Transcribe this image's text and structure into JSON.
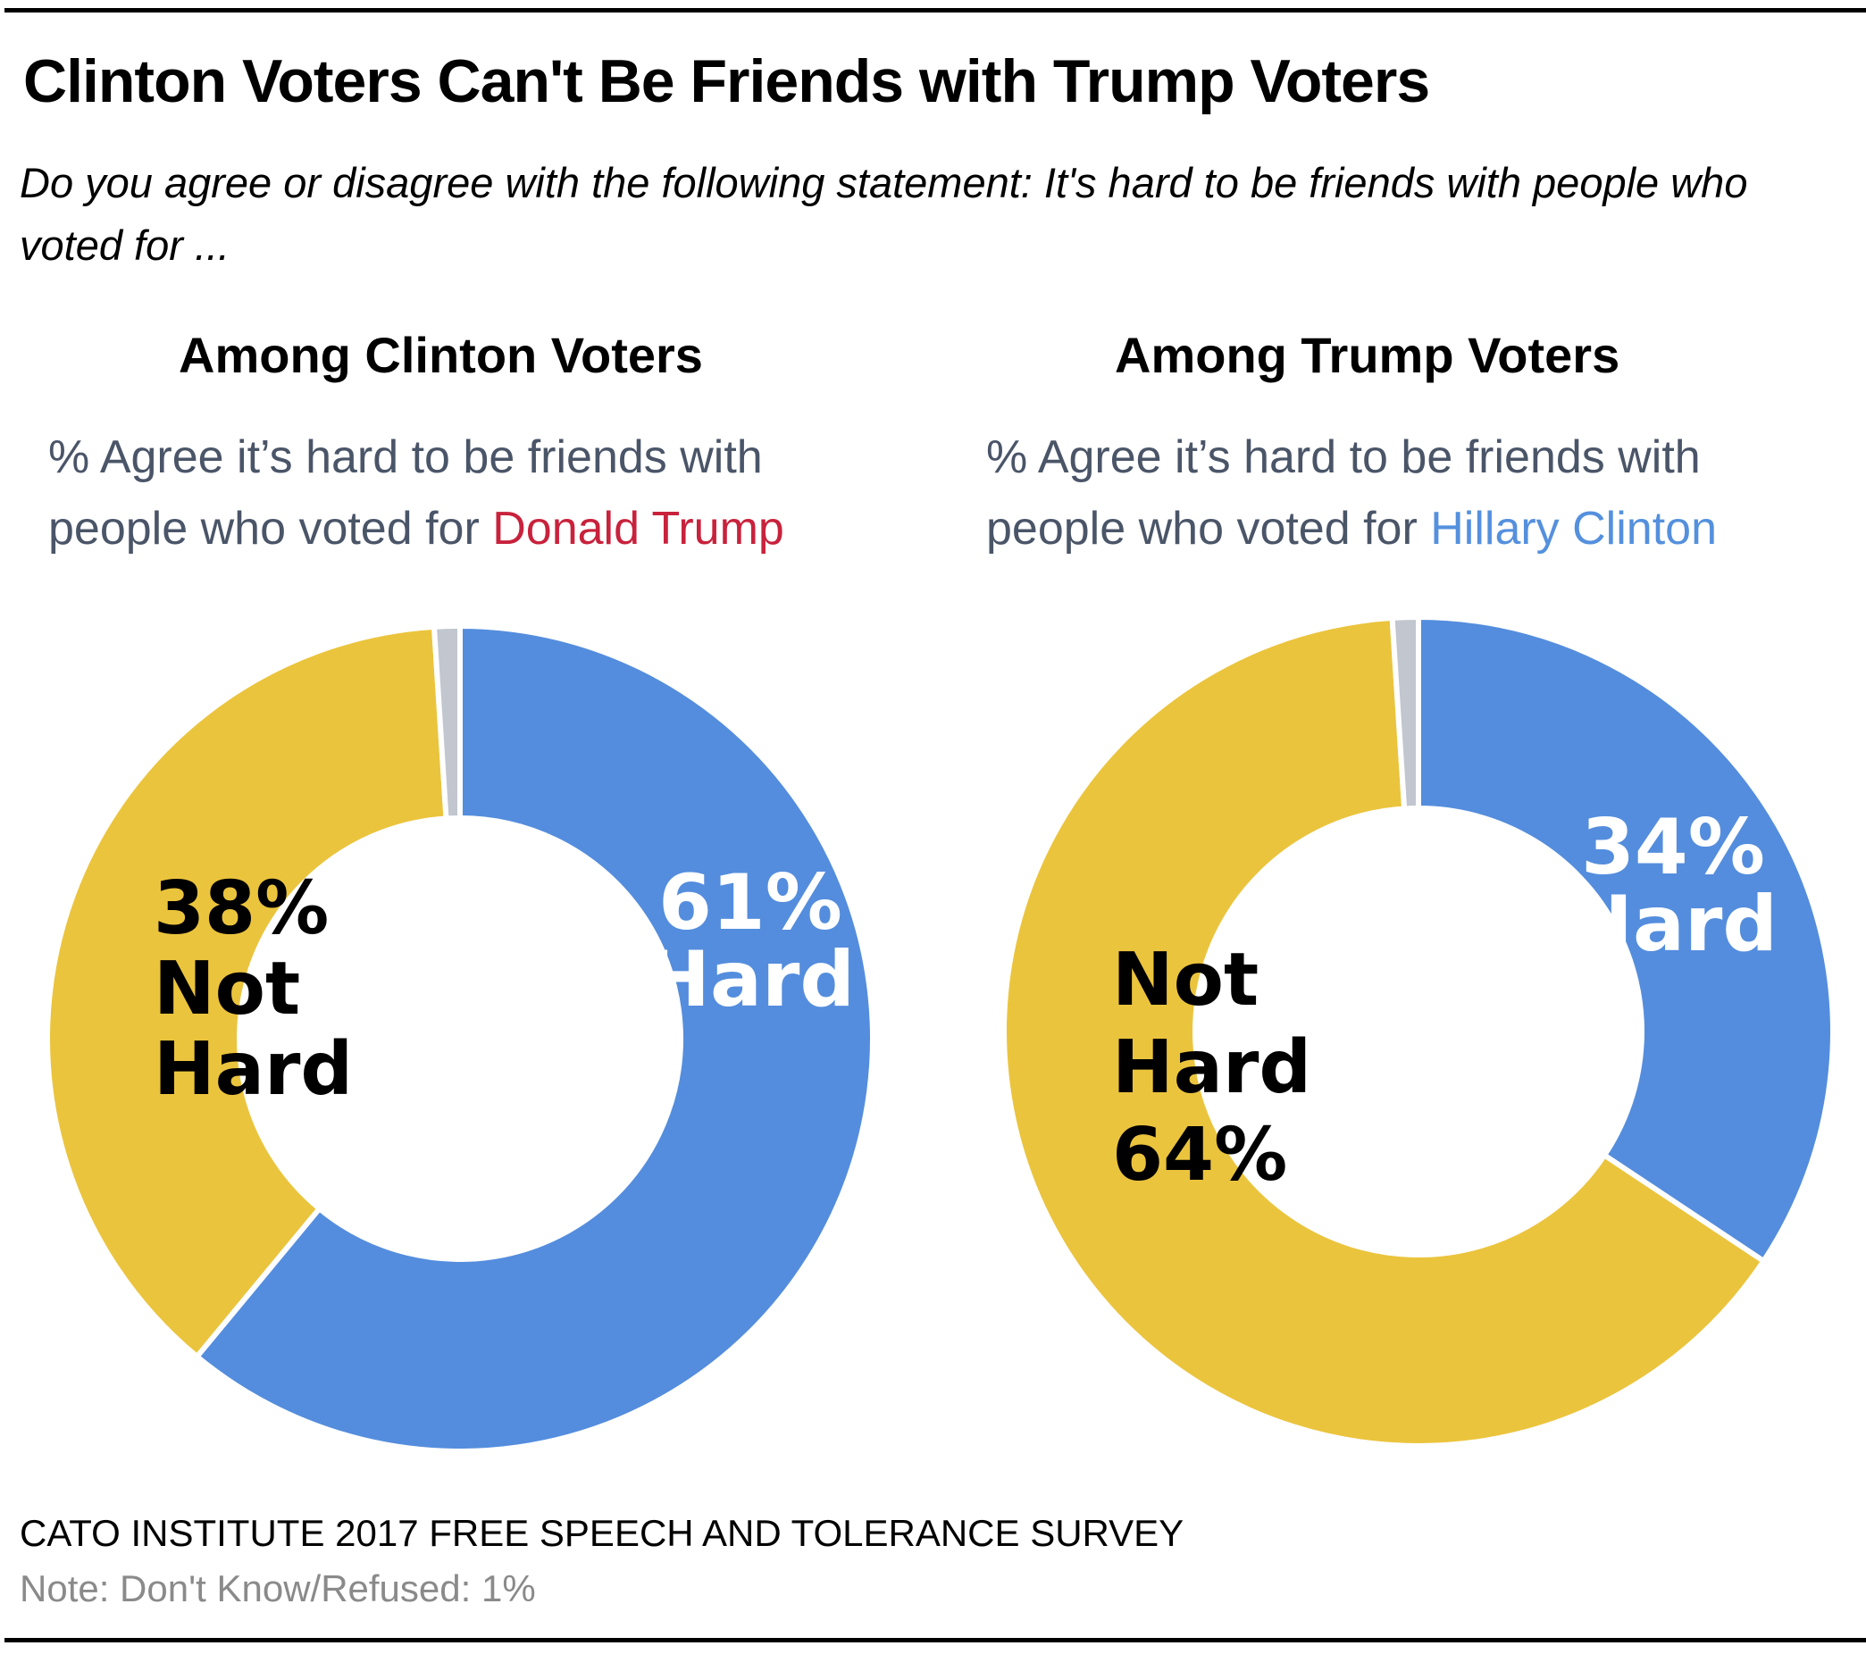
{
  "header": {
    "title": "Clinton Voters Can't Be Friends with Trump Voters",
    "question": "Do you agree or disagree with the following statement: It's hard to be friends with people who voted for ..."
  },
  "panels": [
    {
      "title": "Among Clinton Voters",
      "subtitle_line1": "% Agree it’s hard to be friends with",
      "subtitle_line2_prefix": "people who voted for ",
      "subtitle_highlight": "Donald Trump",
      "highlight_color": "#c8223c"
    },
    {
      "title": "Among Trump Voters",
      "subtitle_line1": "% Agree it’s hard to be friends with",
      "subtitle_line2_prefix": "people who voted for ",
      "subtitle_highlight": "Hillary Clinton",
      "highlight_color": "#5490dd"
    }
  ],
  "footer": {
    "source": "CATO INSTITUTE 2017 FREE SPEECH AND TOLERANCE SURVEY",
    "note": "Note: Don't Know/Refused: 1%"
  },
  "colors": {
    "hard": "#548ddd",
    "not_hard": "#ebc43d",
    "dont_know": "#c1c6cf"
  },
  "chart_data": [
    {
      "type": "pie",
      "variant": "donut",
      "title": "Among Clinton Voters",
      "categories": [
        "Hard",
        "Not Hard",
        "Don't Know/Refused"
      ],
      "values": [
        61,
        38,
        1
      ],
      "unit": "%",
      "direction": "clockwise from top",
      "labels": [
        {
          "category": "Hard",
          "lines": [
            "61%",
            "Hard"
          ],
          "color": "#ffffff"
        },
        {
          "category": "Not Hard",
          "lines": [
            "38%",
            "Not",
            "Hard"
          ],
          "color": "#000000"
        }
      ]
    },
    {
      "type": "pie",
      "variant": "donut",
      "title": "Among Trump Voters",
      "categories": [
        "Hard",
        "Not Hard",
        "Don't Know/Refused"
      ],
      "values": [
        34,
        64,
        1
      ],
      "unit": "%",
      "direction": "clockwise from top",
      "labels": [
        {
          "category": "Hard",
          "lines": [
            "34%",
            "Hard"
          ],
          "color": "#ffffff"
        },
        {
          "category": "Not Hard",
          "lines": [
            "Not",
            "Hard",
            "64%"
          ],
          "color": "#000000"
        }
      ]
    }
  ]
}
